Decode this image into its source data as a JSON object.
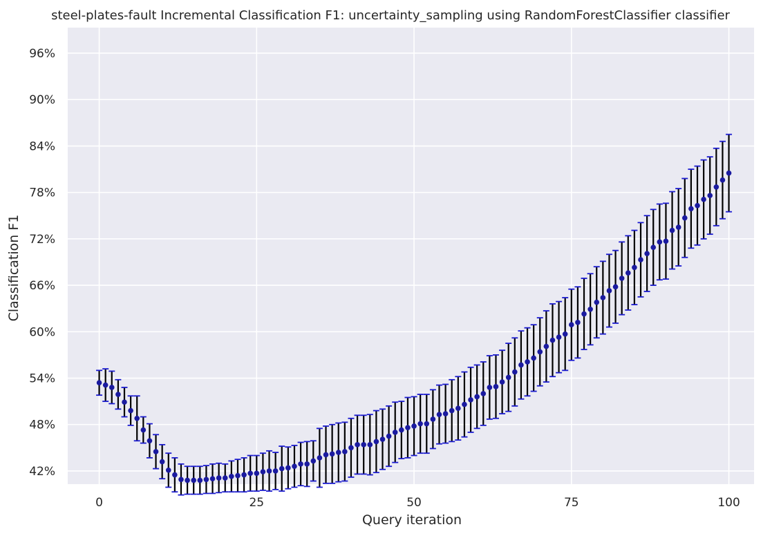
{
  "chart_data": {
    "type": "scatter",
    "title": "steel-plates-fault Incremental Classification F1: uncertainty_sampling using RandomForestClassifier classifier",
    "xlabel": "Query iteration",
    "ylabel": "Classification F1",
    "xlim": [
      -5,
      104
    ],
    "ylim": [
      40.3,
      99.3
    ],
    "x_ticks": [
      0,
      25,
      50,
      75,
      100
    ],
    "x_tick_labels": [
      "0",
      "25",
      "50",
      "75",
      "100"
    ],
    "y_ticks": [
      42,
      48,
      54,
      60,
      66,
      72,
      78,
      84,
      90,
      96
    ],
    "y_tick_labels": [
      "42%",
      "48%",
      "54%",
      "60%",
      "66%",
      "72%",
      "78%",
      "84%",
      "90%",
      "96%"
    ],
    "grid": true,
    "colors": {
      "background": "#eaeaf2",
      "grid": "#ffffff",
      "marker": "#1a1aa0",
      "cap": "#1a1ad0",
      "errorbar": "#000000",
      "text": "#262626"
    },
    "series": [
      {
        "x": [
          0,
          1,
          2,
          3,
          4,
          5,
          6,
          7,
          8,
          9,
          10,
          11,
          12,
          13,
          14,
          15,
          16,
          17,
          18,
          19,
          20,
          21,
          22,
          23,
          24,
          25,
          26,
          27,
          28,
          29,
          30,
          31,
          32,
          33,
          34,
          35,
          36,
          37,
          38,
          39,
          40,
          41,
          42,
          43,
          44,
          45,
          46,
          47,
          48,
          49,
          50,
          51,
          52,
          53,
          54,
          55,
          56,
          57,
          58,
          59,
          60,
          61,
          62,
          63,
          64,
          65,
          66,
          67,
          68,
          69,
          70,
          71,
          72,
          73,
          74,
          75,
          76,
          77,
          78,
          79,
          80,
          81,
          82,
          83,
          84,
          85,
          86,
          87,
          88,
          89,
          90,
          91,
          92,
          93,
          94,
          95,
          96,
          97,
          98,
          99,
          100
        ],
        "y": [
          53.4,
          53.1,
          52.8,
          51.9,
          50.9,
          49.8,
          48.8,
          47.3,
          45.9,
          44.5,
          43.2,
          42.1,
          41.5,
          40.9,
          40.8,
          40.8,
          40.8,
          40.9,
          41.0,
          41.1,
          41.1,
          41.3,
          41.4,
          41.5,
          41.7,
          41.7,
          41.9,
          42.0,
          42.0,
          42.3,
          42.4,
          42.6,
          42.9,
          42.9,
          43.3,
          43.7,
          44.1,
          44.2,
          44.4,
          44.5,
          45.0,
          45.4,
          45.4,
          45.4,
          45.8,
          46.1,
          46.5,
          47.0,
          47.3,
          47.6,
          47.8,
          48.1,
          48.1,
          48.7,
          49.3,
          49.4,
          49.8,
          50.1,
          50.6,
          51.2,
          51.6,
          52.0,
          52.8,
          52.9,
          53.5,
          54.1,
          54.8,
          55.7,
          56.1,
          56.6,
          57.4,
          58.1,
          58.9,
          59.3,
          59.7,
          60.9,
          61.2,
          62.3,
          62.9,
          63.8,
          64.4,
          65.3,
          65.8,
          66.9,
          67.6,
          68.3,
          69.3,
          70.1,
          70.9,
          71.6,
          71.7,
          73.1,
          73.5,
          74.7,
          75.9,
          76.3,
          77.1,
          77.6,
          78.7,
          79.6,
          80.5
        ],
        "err": [
          1.6,
          2.1,
          2.1,
          1.9,
          1.9,
          1.9,
          2.9,
          1.7,
          2.2,
          2.2,
          2.2,
          2.2,
          2.2,
          2.0,
          1.8,
          1.8,
          1.8,
          1.8,
          1.9,
          1.9,
          1.8,
          2.0,
          2.1,
          2.2,
          2.3,
          2.3,
          2.4,
          2.6,
          2.4,
          2.9,
          2.7,
          2.7,
          2.8,
          2.9,
          2.6,
          3.8,
          3.7,
          3.8,
          3.8,
          3.8,
          3.8,
          3.8,
          3.8,
          3.9,
          4.0,
          3.9,
          3.9,
          3.9,
          3.7,
          3.9,
          3.8,
          3.8,
          3.8,
          3.8,
          3.8,
          3.8,
          4.0,
          4.1,
          4.2,
          4.2,
          4.1,
          4.1,
          4.1,
          4.1,
          4.1,
          4.4,
          4.4,
          4.4,
          4.4,
          4.3,
          4.4,
          4.6,
          4.7,
          4.6,
          4.7,
          4.6,
          4.6,
          4.6,
          4.6,
          4.6,
          4.7,
          4.7,
          4.7,
          4.7,
          4.8,
          4.8,
          4.8,
          4.9,
          4.9,
          4.9,
          4.9,
          5.0,
          5.0,
          5.1,
          5.1,
          5.1,
          5.1,
          5.0,
          5.0,
          5.0,
          5.0
        ]
      }
    ]
  }
}
